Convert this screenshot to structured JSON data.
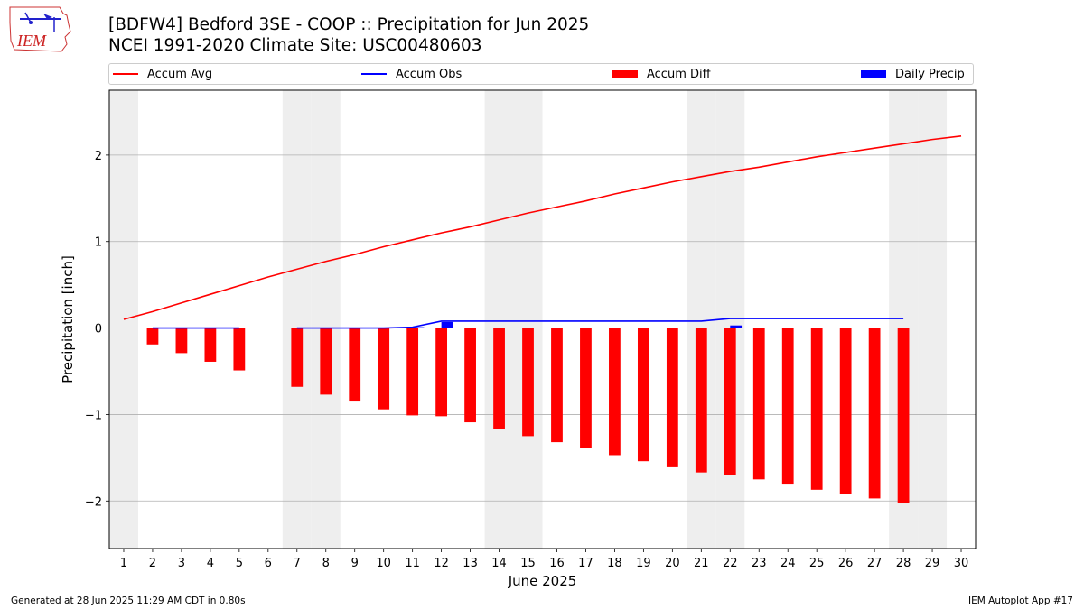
{
  "header": {
    "logo_text": "IEM",
    "title_line1": "[BDFW4] Bedford 3SE - COOP :: Precipitation for Jun 2025",
    "title_line2": "NCEI 1991-2020 Climate Site: USC00480603"
  },
  "footer": {
    "generated": "Generated at 28 Jun 2025 11:29 AM CDT in 0.80s",
    "app": "IEM Autoplot App #17"
  },
  "colors": {
    "avg": "#ff0000",
    "obs": "#0000ff",
    "diff": "#ff0000",
    "precip": "#0000ff",
    "weekend": "#eeeeee",
    "grid": "#b0b0b0"
  },
  "chart_data": {
    "type": "bar",
    "xlabel": "June 2025",
    "ylabel": "Precipitation [inch]",
    "xlim": [
      0.5,
      30.5
    ],
    "ylim": [
      -2.55,
      2.75
    ],
    "yticks": [
      -2,
      -1,
      0,
      1,
      2
    ],
    "ytick_labels": [
      "−2",
      "−1",
      "0",
      "1",
      "2"
    ],
    "x_ticks": [
      1,
      2,
      3,
      4,
      5,
      6,
      7,
      8,
      9,
      10,
      11,
      12,
      13,
      14,
      15,
      16,
      17,
      18,
      19,
      20,
      21,
      22,
      23,
      24,
      25,
      26,
      27,
      28,
      29,
      30
    ],
    "grid": "horizontal",
    "legend_position": "top",
    "weekend_days": [
      1,
      7,
      8,
      14,
      15,
      21,
      22,
      28,
      29
    ],
    "series": [
      {
        "name": "Accum Avg",
        "kind": "line",
        "x": [
          1,
          2,
          3,
          4,
          5,
          6,
          7,
          8,
          9,
          10,
          11,
          12,
          13,
          14,
          15,
          16,
          17,
          18,
          19,
          20,
          21,
          22,
          23,
          24,
          25,
          26,
          27,
          28,
          29,
          30
        ],
        "values": [
          0.1,
          0.19,
          0.29,
          0.39,
          0.49,
          0.59,
          0.68,
          0.77,
          0.85,
          0.94,
          1.02,
          1.1,
          1.17,
          1.25,
          1.33,
          1.4,
          1.47,
          1.55,
          1.62,
          1.69,
          1.75,
          1.81,
          1.86,
          1.92,
          1.98,
          2.03,
          2.08,
          2.13,
          2.18,
          2.22
        ]
      },
      {
        "name": "Accum Obs",
        "kind": "line",
        "segments": [
          {
            "x": [
              2,
              3,
              4,
              5
            ],
            "values": [
              0.0,
              0.0,
              0.0,
              0.0
            ]
          },
          {
            "x": [
              7,
              8,
              9,
              10,
              11,
              12,
              13,
              14,
              15,
              16,
              17,
              18,
              19,
              20,
              21,
              22,
              23,
              24,
              25,
              26,
              27,
              28
            ],
            "values": [
              0.0,
              0.0,
              0.0,
              0.0,
              0.01,
              0.08,
              0.08,
              0.08,
              0.08,
              0.08,
              0.08,
              0.08,
              0.08,
              0.08,
              0.08,
              0.11,
              0.11,
              0.11,
              0.11,
              0.11,
              0.11,
              0.11
            ]
          }
        ]
      },
      {
        "name": "Accum Diff",
        "kind": "bar",
        "x": [
          2,
          3,
          4,
          5,
          7,
          8,
          9,
          10,
          11,
          12,
          13,
          14,
          15,
          16,
          17,
          18,
          19,
          20,
          21,
          22,
          23,
          24,
          25,
          26,
          27,
          28
        ],
        "values": [
          -0.19,
          -0.29,
          -0.39,
          -0.49,
          -0.68,
          -0.77,
          -0.85,
          -0.94,
          -1.01,
          -1.02,
          -1.09,
          -1.17,
          -1.25,
          -1.32,
          -1.39,
          -1.47,
          -1.54,
          -1.61,
          -1.67,
          -1.7,
          -1.75,
          -1.81,
          -1.87,
          -1.92,
          -1.97,
          -2.02
        ]
      },
      {
        "name": "Daily Precip",
        "kind": "bar",
        "x": [
          11,
          12,
          22
        ],
        "values": [
          0.01,
          0.07,
          0.03
        ]
      }
    ]
  }
}
